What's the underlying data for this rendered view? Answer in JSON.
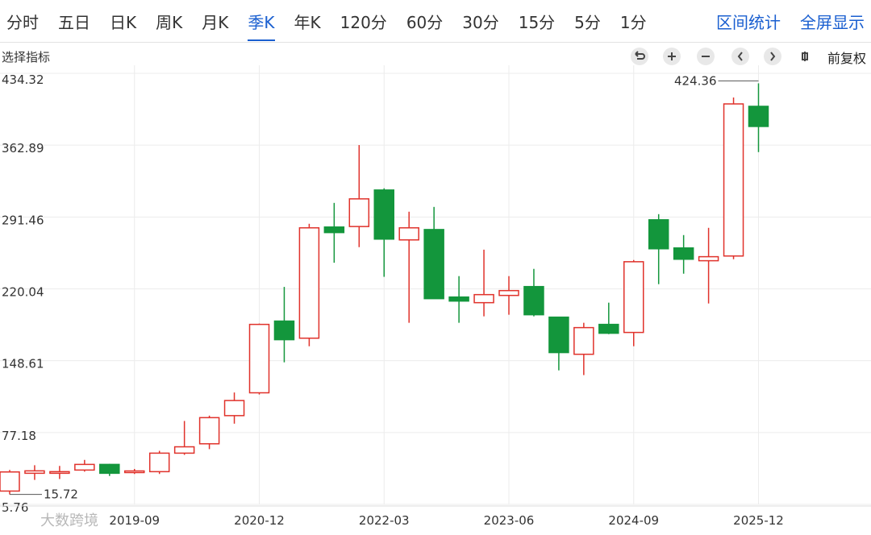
{
  "toolbar": {
    "tabs": [
      "分时",
      "五日",
      "日K",
      "周K",
      "月K",
      "季K",
      "年K",
      "120分",
      "60分",
      "30分",
      "15分",
      "5分",
      "1分"
    ],
    "selected": 5,
    "links": [
      "区间统计",
      "全屏显示"
    ]
  },
  "indicator_bar": {
    "label": "选择指标",
    "price_adjust": "前复权"
  },
  "watermark": "大数跨境",
  "chart_data": {
    "type": "candlestick",
    "categories": [
      null,
      null,
      null,
      null,
      null,
      "2019-09",
      null,
      null,
      null,
      null,
      "2020-12",
      null,
      null,
      null,
      null,
      "2022-03",
      null,
      null,
      null,
      null,
      "2023-06",
      null,
      null,
      null,
      null,
      "2024-09",
      null,
      null,
      null,
      null,
      "2025-12"
    ],
    "open": [
      19,
      36.7,
      36.7,
      39.9,
      45.5,
      37.5,
      38.3,
      56.7,
      66,
      94,
      116.7,
      188,
      171,
      281.5,
      282,
      318.3,
      268.7,
      279,
      211.9,
      206.3,
      213.5,
      222.3,
      191.9,
      155,
      184.7,
      176.7,
      288.7,
      260.7,
      248,
      252.7,
      401.5
    ],
    "high": [
      40,
      44.7,
      44,
      50,
      46,
      41,
      59,
      88.7,
      94,
      117,
      185.5,
      222,
      284.7,
      305.5,
      363,
      320,
      296.7,
      301.5,
      232.7,
      259,
      232.7,
      239.9,
      192,
      186.3,
      206.3,
      248.7,
      294.3,
      273.5,
      280.7,
      410.3,
      424.36
    ],
    "low": [
      15.72,
      30.1,
      31,
      38.3,
      34,
      36,
      36,
      55,
      60.7,
      86,
      115,
      147,
      163,
      246,
      261.5,
      232,
      186.3,
      210,
      186.3,
      192.7,
      194.3,
      192.7,
      139,
      134.3,
      175,
      163,
      224.7,
      235.1,
      205.5,
      249.5,
      356
    ],
    "close": [
      38,
      39.1,
      38.3,
      45.5,
      36.7,
      39,
      56.7,
      63,
      92,
      109,
      184.7,
      169.5,
      280.7,
      276,
      309.5,
      269.5,
      280.7,
      210.3,
      207.9,
      214.3,
      218.3,
      194.3,
      156.7,
      181.5,
      175.9,
      247,
      259.9,
      249.5,
      252,
      403.9,
      381.5
    ],
    "up_color": "#e0322b",
    "down_color": "#13963c",
    "max_label": "424.36",
    "min_label": "15.72",
    "ylim": [
      5.76,
      434.32
    ],
    "yticks": [
      5.76,
      77.18,
      148.61,
      220.04,
      291.46,
      362.89,
      434.32
    ],
    "grid": true
  }
}
